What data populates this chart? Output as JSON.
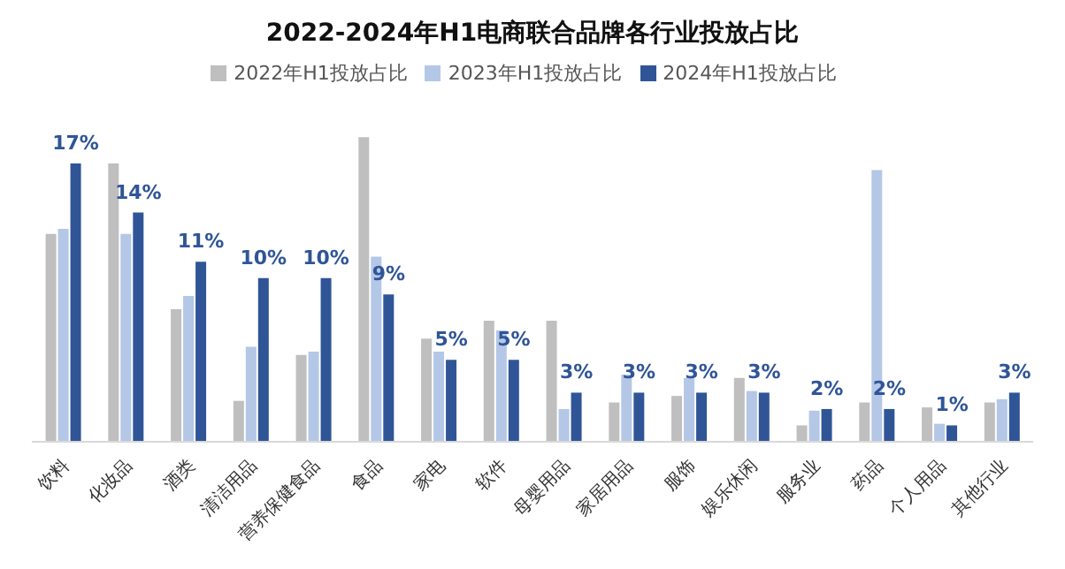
{
  "chart_data": {
    "type": "bar",
    "title": "2022-2024年H1电商联合品牌各行业投放占比",
    "categories": [
      "饮料",
      "化妆品",
      "酒类",
      "清洁用品",
      "营养保健食品",
      "食品",
      "家电",
      "软件",
      "母婴用品",
      "家居用品",
      "服饰",
      "娱乐休闲",
      "服务业",
      "药品",
      "个人用品",
      "其他行业"
    ],
    "series": [
      {
        "name": "2022年H1投放占比",
        "color": "#bfbfbf",
        "values": [
          12.7,
          17,
          8.1,
          2.5,
          5.3,
          18.6,
          6.3,
          7.4,
          7.4,
          2.4,
          2.8,
          3.9,
          1,
          2.4,
          2.1,
          2.4
        ]
      },
      {
        "name": "2023年H1投放占比",
        "color": "#b4c7e7",
        "values": [
          13,
          12.7,
          8.9,
          5.8,
          5.5,
          11.3,
          5.5,
          6.8,
          2,
          4.1,
          3.9,
          3.1,
          1.9,
          16.6,
          1.1,
          2.6
        ]
      },
      {
        "name": "2024年H1投放占比",
        "color": "#2f5597",
        "values": [
          17,
          14,
          11,
          10,
          10,
          9,
          5,
          5,
          3,
          3,
          3,
          3,
          2,
          2,
          1,
          3
        ],
        "value_labels": [
          "17%",
          "14%",
          "11%",
          "10%",
          "10%",
          "9%",
          "5%",
          "5%",
          "3%",
          "3%",
          "3%",
          "3%",
          "2%",
          "2%",
          "1%",
          "3%"
        ]
      }
    ],
    "legend": "top"
  }
}
